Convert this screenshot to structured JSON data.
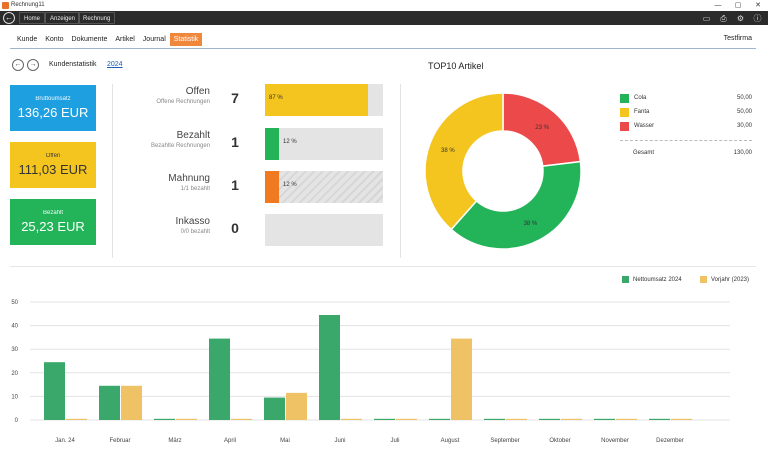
{
  "window": {
    "title": "Rechnung11"
  },
  "nav": {
    "crumbs": [
      "Home",
      "Anzeigen",
      "Rechnung"
    ]
  },
  "tabs": [
    {
      "label": "Kunde"
    },
    {
      "label": "Konto"
    },
    {
      "label": "Dokumente"
    },
    {
      "label": "Artikel"
    },
    {
      "label": "Journal"
    },
    {
      "label": "Statistik",
      "active": true
    }
  ],
  "company": "Testfirma",
  "kundenstatistik": {
    "label": "Kundenstatistik",
    "year": "2024"
  },
  "tiles": [
    {
      "label": "Bruttoumsatz",
      "value": "136,26 EUR",
      "color": "#1ea0e0"
    },
    {
      "label": "Offen",
      "value": "111,03 EUR",
      "color": "#f5c51f"
    },
    {
      "label": "Bezahlt",
      "value": "25,23 EUR",
      "color": "#23b45a"
    }
  ],
  "stats": [
    {
      "title": "Offen",
      "sub": "Offene Rechnungen",
      "count": "7",
      "percent": 87,
      "percent_label": "87 %",
      "color": "#f5c51f",
      "striped": false
    },
    {
      "title": "Bezahlt",
      "sub": "Bezahlte Rechnungen",
      "count": "1",
      "percent": 12,
      "percent_label": "12 %",
      "color": "#23b45a",
      "striped": false
    },
    {
      "title": "Mahnung",
      "sub": "1/1 bezahlt",
      "count": "1",
      "percent": 12,
      "percent_label": "12 %",
      "color": "#f07a20",
      "striped": true
    },
    {
      "title": "Inkasso",
      "sub": "0/0 bezahlt",
      "count": "0",
      "percent": 0,
      "percent_label": "",
      "color": "#cccccc",
      "striped": false
    }
  ],
  "top10": {
    "title": "TOP10 Artikel",
    "items": [
      {
        "name": "Cola",
        "value": "50,00",
        "percent_label": "38 %",
        "color": "#23b45a"
      },
      {
        "name": "Fanta",
        "value": "50,00",
        "percent_label": "38 %",
        "color": "#f5c51f"
      },
      {
        "name": "Wasser",
        "value": "30,00",
        "percent_label": "23 %",
        "color": "#ec4a4a"
      }
    ],
    "total_label": "Gesamt",
    "total_value": "130,00"
  },
  "chart_data": {
    "type": "bar",
    "categories": [
      "Jan. 24",
      "Februar",
      "März",
      "April",
      "Mai",
      "Juni",
      "Juli",
      "August",
      "September",
      "Oktober",
      "November",
      "Dezember"
    ],
    "series": [
      {
        "name": "Nettoumsatz 2024",
        "color": "#3aa86a",
        "values": [
          24.5,
          14.5,
          0.5,
          34.5,
          9.5,
          44.5,
          0.5,
          0.5,
          0.5,
          0.5,
          0.5,
          0.5
        ]
      },
      {
        "name": "Vorjahr (2023)",
        "color": "#efc266",
        "values": [
          0.5,
          14.5,
          0.5,
          0.5,
          11.5,
          0.5,
          0.5,
          34.5,
          0.5,
          0.5,
          0.5,
          0.5
        ]
      }
    ],
    "yticks": [
      "0",
      "10",
      "20",
      "30",
      "40",
      "50"
    ],
    "ylim": [
      0,
      50
    ],
    "grid": true,
    "legend": "top-right"
  }
}
